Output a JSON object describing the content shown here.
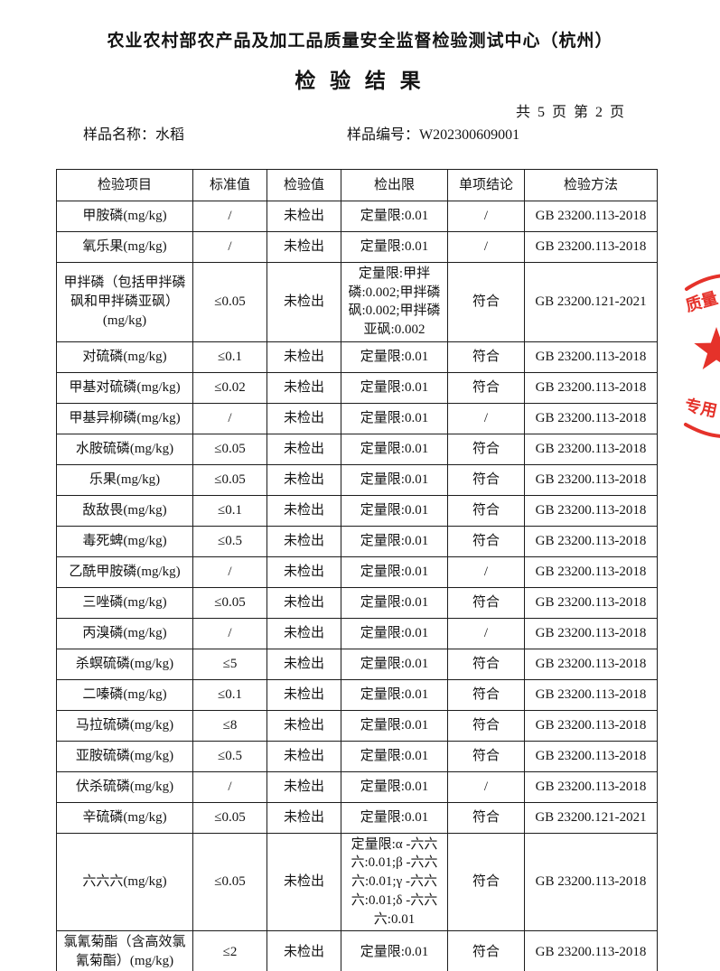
{
  "header": {
    "org_title": "农业农村部农产品及加工品质量安全监督检验测试中心（杭州）",
    "doc_title": "检  验  结  果",
    "page_info": "共 5 页 第 2 页",
    "sample_name_label": "样品名称：",
    "sample_name_value": "水稻",
    "sample_no_label": "样品编号：",
    "sample_no_value": "W202300609001"
  },
  "table": {
    "columns": [
      "检验项目",
      "标准值",
      "检验值",
      "检出限",
      "单项结论",
      "检验方法"
    ],
    "rows": [
      [
        "甲胺磷(mg/kg)",
        "/",
        "未检出",
        "定量限:0.01",
        "/",
        "GB 23200.113-2018"
      ],
      [
        "氧乐果(mg/kg)",
        "/",
        "未检出",
        "定量限:0.01",
        "/",
        "GB 23200.113-2018"
      ],
      [
        "甲拌磷（包括甲拌磷砜和甲拌磷亚砜）(mg/kg)",
        "≤0.05",
        "未检出",
        "定量限:甲拌磷:0.002;甲拌磷砜:0.002;甲拌磷亚砜:0.002",
        "符合",
        "GB 23200.121-2021"
      ],
      [
        "对硫磷(mg/kg)",
        "≤0.1",
        "未检出",
        "定量限:0.01",
        "符合",
        "GB 23200.113-2018"
      ],
      [
        "甲基对硫磷(mg/kg)",
        "≤0.02",
        "未检出",
        "定量限:0.01",
        "符合",
        "GB 23200.113-2018"
      ],
      [
        "甲基异柳磷(mg/kg)",
        "/",
        "未检出",
        "定量限:0.01",
        "/",
        "GB 23200.113-2018"
      ],
      [
        "水胺硫磷(mg/kg)",
        "≤0.05",
        "未检出",
        "定量限:0.01",
        "符合",
        "GB 23200.113-2018"
      ],
      [
        "乐果(mg/kg)",
        "≤0.05",
        "未检出",
        "定量限:0.01",
        "符合",
        "GB 23200.113-2018"
      ],
      [
        "敌敌畏(mg/kg)",
        "≤0.1",
        "未检出",
        "定量限:0.01",
        "符合",
        "GB 23200.113-2018"
      ],
      [
        "毒死蜱(mg/kg)",
        "≤0.5",
        "未检出",
        "定量限:0.01",
        "符合",
        "GB 23200.113-2018"
      ],
      [
        "乙酰甲胺磷(mg/kg)",
        "/",
        "未检出",
        "定量限:0.01",
        "/",
        "GB 23200.113-2018"
      ],
      [
        "三唑磷(mg/kg)",
        "≤0.05",
        "未检出",
        "定量限:0.01",
        "符合",
        "GB 23200.113-2018"
      ],
      [
        "丙溴磷(mg/kg)",
        "/",
        "未检出",
        "定量限:0.01",
        "/",
        "GB 23200.113-2018"
      ],
      [
        "杀螟硫磷(mg/kg)",
        "≤5",
        "未检出",
        "定量限:0.01",
        "符合",
        "GB 23200.113-2018"
      ],
      [
        "二嗪磷(mg/kg)",
        "≤0.1",
        "未检出",
        "定量限:0.01",
        "符合",
        "GB 23200.113-2018"
      ],
      [
        "马拉硫磷(mg/kg)",
        "≤8",
        "未检出",
        "定量限:0.01",
        "符合",
        "GB 23200.113-2018"
      ],
      [
        "亚胺硫磷(mg/kg)",
        "≤0.5",
        "未检出",
        "定量限:0.01",
        "符合",
        "GB 23200.113-2018"
      ],
      [
        "伏杀硫磷(mg/kg)",
        "/",
        "未检出",
        "定量限:0.01",
        "/",
        "GB 23200.113-2018"
      ],
      [
        "辛硫磷(mg/kg)",
        "≤0.05",
        "未检出",
        "定量限:0.01",
        "符合",
        "GB 23200.121-2021"
      ],
      [
        "六六六(mg/kg)",
        "≤0.05",
        "未检出",
        "定量限:α -六六六:0.01;β -六六六:0.01;γ -六六六:0.01;δ -六六六:0.01",
        "符合",
        "GB 23200.113-2018"
      ],
      [
        "氯氰菊酯（含高效氯氰菊酯）(mg/kg)",
        "≤2",
        "未检出",
        "定量限:0.01",
        "符合",
        "GB 23200.113-2018"
      ]
    ]
  },
  "stamp": {
    "color": "#e32119",
    "text_upper": "质量",
    "text_lower": "专用"
  }
}
